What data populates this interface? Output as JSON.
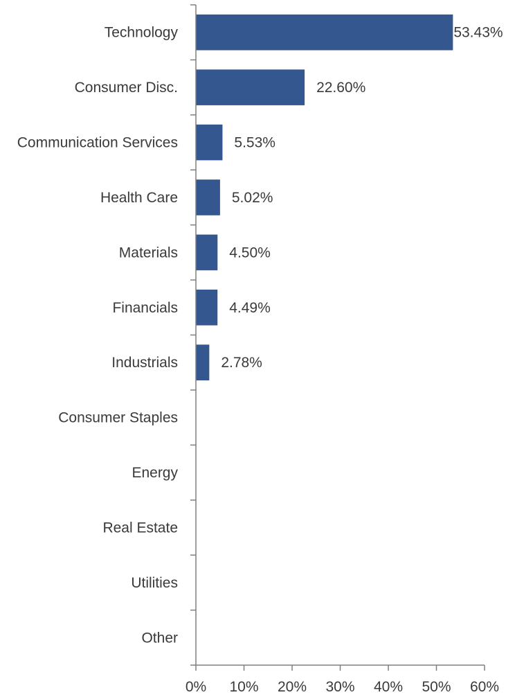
{
  "chart_data": {
    "type": "bar",
    "orientation": "horizontal",
    "categories": [
      "Technology",
      "Consumer Disc.",
      "Communication Services",
      "Health Care",
      "Materials",
      "Financials",
      "Industrials",
      "Consumer Staples",
      "Energy",
      "Real Estate",
      "Utilities",
      "Other"
    ],
    "values": [
      53.43,
      22.6,
      5.53,
      5.02,
      4.5,
      4.49,
      2.78,
      null,
      null,
      null,
      null,
      null
    ],
    "data_labels": [
      "53.43%",
      "22.60%",
      "5.53%",
      "5.02%",
      "4.50%",
      "4.49%",
      "2.78%",
      "",
      "",
      "",
      "",
      ""
    ],
    "x_ticks": [
      "0%",
      "10%",
      "20%",
      "30%",
      "40%",
      "50%",
      "60%"
    ],
    "xlim": [
      0,
      60
    ],
    "grid": false,
    "legend": "none",
    "bar_color": "#34578f",
    "title": "",
    "xlabel": "",
    "ylabel": ""
  }
}
